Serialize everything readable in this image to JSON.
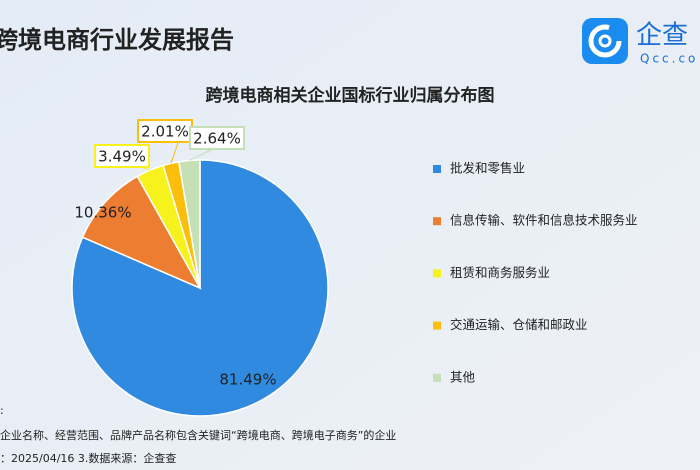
{
  "header": {
    "title": "跨境电商行业发展报告"
  },
  "logo": {
    "name": "企查",
    "domain": "Qcc.co"
  },
  "chart_data": {
    "type": "pie",
    "title": "跨境电商相关企业国标行业归属分布图",
    "categories": [
      "批发和零售业",
      "信息传输、软件和信息技术服务业",
      "租赁和商务服务业",
      "交通运输、仓储和邮政业",
      "其他"
    ],
    "values": [
      81.49,
      10.36,
      3.49,
      2.01,
      2.64
    ],
    "value_labels": [
      "81.49%",
      "10.36%",
      "3.49%",
      "2.01%",
      "2.64%"
    ],
    "colors": [
      "#2f8ae0",
      "#ed7d31",
      "#f7f21c",
      "#fbbf0b",
      "#c5e0b4"
    ],
    "legend": "right"
  },
  "footnotes": [
    ":",
    "企业名称、经营范围、品牌产品名称包含关键词“跨境电商、跨境电子商务”的企业",
    "：2025/04/16   3.数据来源：企查查"
  ]
}
